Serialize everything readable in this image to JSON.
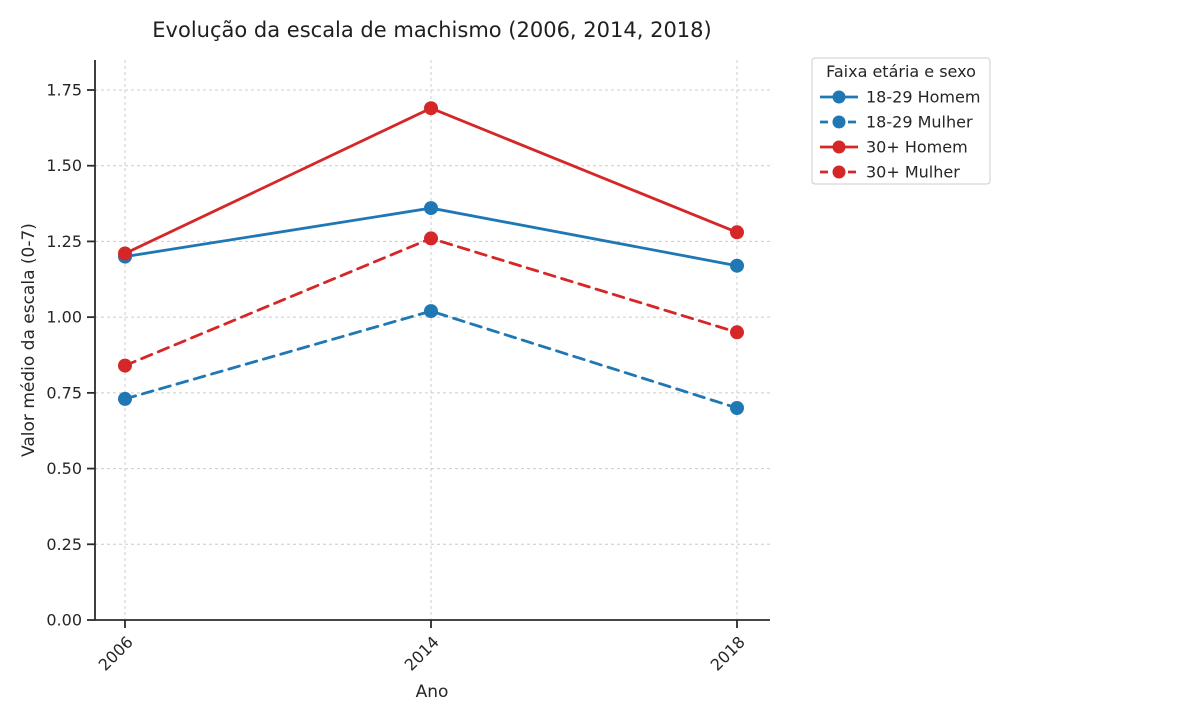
{
  "figure": {
    "title": "Evolução da escala de machismo (2006, 2014, 2018)"
  },
  "legend": {
    "title": "Faixa etária e sexo"
  },
  "chart_data": {
    "type": "line",
    "title": "Evolução da escala de machismo (2006, 2014, 2018)",
    "xlabel": "Ano",
    "ylabel": "Valor médio da escala (0-7)",
    "categories": [
      "2006",
      "2014",
      "2018"
    ],
    "series": [
      {
        "name": "18-29 Homem",
        "color": "#1f77b4",
        "style": "solid",
        "values": [
          1.2,
          1.36,
          1.17
        ]
      },
      {
        "name": "18-29 Mulher",
        "color": "#1f77b4",
        "style": "dashed",
        "values": [
          0.73,
          1.02,
          0.7
        ]
      },
      {
        "name": "30+ Homem",
        "color": "#d62728",
        "style": "solid",
        "values": [
          1.21,
          1.69,
          1.28
        ]
      },
      {
        "name": "30+ Mulher",
        "color": "#d62728",
        "style": "dashed",
        "values": [
          0.84,
          1.26,
          0.95
        ]
      }
    ],
    "ylim": [
      0.0,
      1.85
    ],
    "yticks": [
      "0.00",
      "0.25",
      "0.50",
      "0.75",
      "1.00",
      "1.25",
      "1.50",
      "1.75"
    ],
    "grid": true,
    "grid_style": "dashed",
    "legend_title": "Faixa etária e sexo",
    "legend_position": "outside upper right",
    "colors": {
      "blue": "#1f77b4",
      "red": "#d62728",
      "grid": "#cccccc",
      "axis": "#2b2b2b",
      "text": "#262626",
      "legend_border": "#cccccc"
    }
  }
}
